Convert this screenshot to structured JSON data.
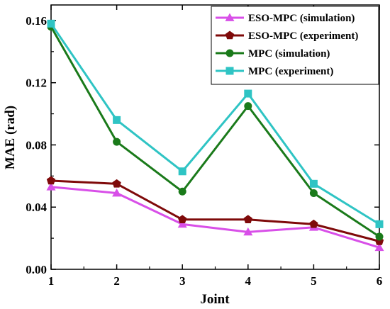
{
  "chart_data": {
    "type": "line",
    "xlabel": "Joint",
    "ylabel": "MAE (rad)",
    "x": [
      1,
      2,
      3,
      4,
      5,
      6
    ],
    "xlim": [
      1,
      6
    ],
    "ylim": [
      0,
      0.17
    ],
    "xticks": [
      "1",
      "2",
      "3",
      "4",
      "5",
      "6"
    ],
    "yticks": [
      {
        "value": 0.0,
        "label": "0.00"
      },
      {
        "value": 0.04,
        "label": "0.04"
      },
      {
        "value": 0.08,
        "label": "0.08"
      },
      {
        "value": 0.12,
        "label": "0.12"
      },
      {
        "value": 0.16,
        "label": "0.16"
      }
    ],
    "grid": false,
    "legend_position": "top-right",
    "series": [
      {
        "name": "ESO-MPC (simulation)",
        "color": "#d84fe8",
        "marker": "triangle",
        "values": [
          0.053,
          0.049,
          0.029,
          0.024,
          0.027,
          0.014
        ]
      },
      {
        "name": "ESO-MPC (experiment)",
        "color": "#7f0a0a",
        "marker": "pentagon",
        "values": [
          0.057,
          0.055,
          0.032,
          0.032,
          0.029,
          0.018
        ]
      },
      {
        "name": "MPC (simulation)",
        "color": "#1a7a1a",
        "marker": "circle",
        "values": [
          0.156,
          0.082,
          0.05,
          0.105,
          0.049,
          0.021
        ]
      },
      {
        "name": "MPC (experiment)",
        "color": "#2fc4c4",
        "marker": "square",
        "values": [
          0.158,
          0.096,
          0.063,
          0.113,
          0.055,
          0.029
        ]
      }
    ]
  }
}
